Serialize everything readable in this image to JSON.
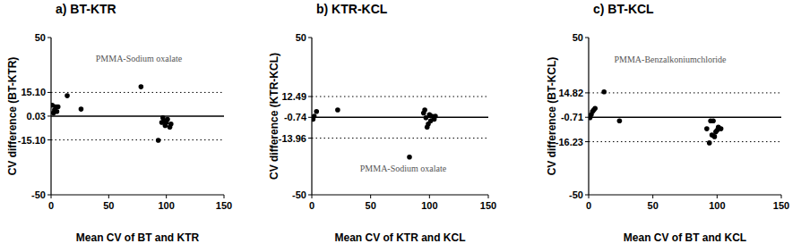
{
  "chart_data": [
    {
      "type": "scatter",
      "title": "a) BT-KTR",
      "x_label": "Mean CV of BT and KTR",
      "y_label": "CV difference (BT-KTR)",
      "annotations": [
        "PMMA-Sodium oxalate"
      ],
      "x": [
        1,
        2,
        3,
        4,
        5,
        6,
        14,
        26,
        78,
        93,
        96,
        97,
        98,
        99,
        100,
        101,
        103,
        104
      ],
      "values": [
        7,
        2,
        4,
        6,
        3,
        6,
        13,
        4.5,
        18.7,
        -15.3,
        -4,
        -1,
        -3,
        -6,
        -4,
        -2,
        -7,
        -5
      ],
      "color": "#000000",
      "marker": "circle",
      "bias": 0.03,
      "limits_of_agreement": [
        -15.1,
        15.1
      ],
      "xlim": [
        0,
        150
      ],
      "xticks": [
        0,
        50,
        100,
        150
      ],
      "ylim": [
        -50,
        50
      ],
      "yticks": [
        -50,
        {
          "value": -15.1,
          "label": "-15.10"
        },
        0.03,
        {
          "value": 15.1,
          "label": "15.10"
        },
        50
      ],
      "grid": false
    },
    {
      "type": "scatter",
      "title": "b) KTR-KCL",
      "x_label": "Mean CV of KTR and KCL",
      "y_label": "CV difference (KTR-KCL)",
      "annotations": [
        "PMMA-Sodium oxalate"
      ],
      "x": [
        1,
        2,
        4,
        22,
        83,
        95,
        96,
        97,
        98,
        99,
        100,
        101,
        102,
        104,
        105
      ],
      "values": [
        -2,
        0,
        3,
        4,
        -26,
        2,
        4,
        -1,
        -7,
        -5,
        1,
        -3,
        0,
        -2,
        0
      ],
      "color": "#000000",
      "marker": "circle",
      "bias": -0.74,
      "limits_of_agreement": [
        -13.96,
        12.49
      ],
      "xlim": [
        0,
        150
      ],
      "xticks": [
        0,
        50,
        100,
        150
      ],
      "ylim": [
        -50,
        50
      ],
      "yticks": [
        -50,
        -13.96,
        -0.74,
        12.49,
        50
      ],
      "grid": false
    },
    {
      "type": "scatter",
      "title": "c) BT-KCL",
      "x_label": "Mean CV of BT and KCL",
      "y_label": "CV difference (BT-KCL)",
      "annotations": [
        "PMMA-Benzalkoniumchloride"
      ],
      "x": [
        1,
        2,
        3,
        4,
        5,
        12,
        24,
        92,
        94,
        95,
        96,
        97,
        98,
        99,
        100,
        101,
        103
      ],
      "values": [
        -1,
        1,
        3,
        4,
        5,
        15.5,
        -3,
        -8,
        -17,
        -3,
        -12,
        -3,
        -13,
        -10,
        -9,
        -7,
        -8
      ],
      "color": "#000000",
      "marker": "circle",
      "bias": -0.71,
      "limits_of_agreement": [
        -16.23,
        14.82
      ],
      "xlim": [
        0,
        150
      ],
      "xticks": [
        0,
        50,
        100,
        150
      ],
      "ylim": [
        -50,
        50
      ],
      "yticks": [
        -50,
        -16.23,
        -0.71,
        14.82,
        50
      ],
      "grid": false
    }
  ]
}
